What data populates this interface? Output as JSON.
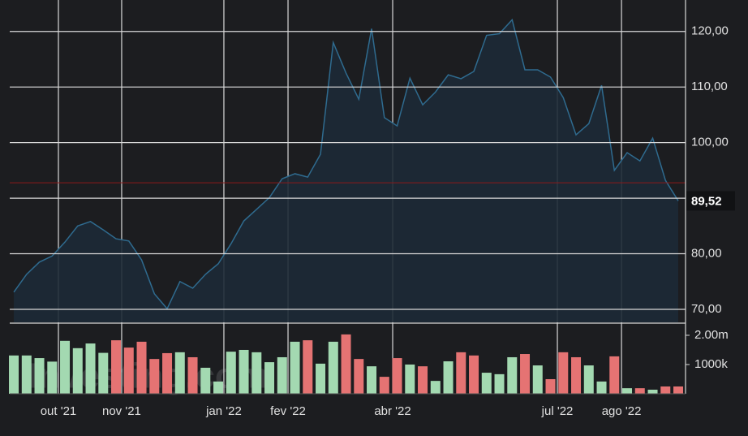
{
  "chart_data": [
    {
      "type": "line",
      "xlim": [
        -0.32,
        52.57
      ],
      "ylim": [
        67.66,
        124.2
      ],
      "yticks": [
        {
          "value": 70,
          "label": "70,00"
        },
        {
          "value": 80,
          "label": "80,00"
        },
        {
          "value": 90,
          "label": "90,00"
        },
        {
          "value": 100,
          "label": "100,00"
        },
        {
          "value": 110,
          "label": "110,00"
        },
        {
          "value": 120,
          "label": "120,00"
        }
      ],
      "grid": true,
      "reference_line": {
        "value": 92.77,
        "color": "#8b1a1a"
      },
      "last_value_label": "89,52",
      "series": [
        {
          "color": "#2f6b8f",
          "values": [
            73.1,
            76.3,
            78.5,
            79.6,
            82.1,
            85.0,
            85.8,
            84.3,
            82.7,
            82.3,
            78.9,
            72.8,
            70.1,
            75.0,
            73.8,
            76.3,
            78.2,
            81.8,
            85.9,
            88.0,
            90.1,
            93.5,
            94.4,
            93.8,
            97.9,
            118.0,
            112.5,
            107.8,
            120.5,
            104.5,
            103.0,
            111.6,
            106.8,
            109.1,
            112.2,
            111.5,
            112.8,
            119.3,
            119.6,
            122.1,
            113.1,
            113.1,
            111.8,
            108.1,
            101.4,
            103.4,
            110.3,
            95.0,
            98.2,
            96.7,
            100.8,
            93.2,
            89.52
          ]
        }
      ]
    },
    {
      "type": "bar",
      "watermark": "Investing.com",
      "xlim": [
        -0.32,
        52.57
      ],
      "ylim": [
        0,
        2360000
      ],
      "yticks": [
        {
          "value": 1000000,
          "label": "1000k"
        },
        {
          "value": 2000000,
          "label": "2.00m"
        }
      ],
      "xticks": [
        {
          "value": 3.49,
          "label": "out '21"
        },
        {
          "value": 8.44,
          "label": "nov '21"
        },
        {
          "value": 16.44,
          "label": "jan '22"
        },
        {
          "value": 21.46,
          "label": "fev '22"
        },
        {
          "value": 29.65,
          "label": "abr '22"
        },
        {
          "value": 42.54,
          "label": "jul '22"
        },
        {
          "value": 47.56,
          "label": "ago '22"
        }
      ],
      "series": [
        {
          "values": [
            1310000,
            1310000,
            1220000,
            1100000,
            1810000,
            1560000,
            1720000,
            1400000,
            1830000,
            1580000,
            1780000,
            1190000,
            1390000,
            1420000,
            1250000,
            890000,
            420000,
            1440000,
            1500000,
            1420000,
            1080000,
            1250000,
            1780000,
            1830000,
            1030000,
            1780000,
            2030000,
            1190000,
            940000,
            580000,
            1220000,
            1000000,
            940000,
            440000,
            1110000,
            1420000,
            1310000,
            720000,
            670000,
            1250000,
            1360000,
            970000,
            500000,
            1420000,
            1250000,
            970000,
            420000,
            1280000,
            190000,
            190000,
            140000,
            250000,
            250000
          ],
          "colors": [
            "#a3d9b1",
            "#a3d9b1",
            "#a3d9b1",
            "#a3d9b1",
            "#a3d9b1",
            "#a3d9b1",
            "#a3d9b1",
            "#a3d9b1",
            "#e57373",
            "#e57373",
            "#e57373",
            "#e57373",
            "#e57373",
            "#a3d9b1",
            "#e57373",
            "#a3d9b1",
            "#a3d9b1",
            "#a3d9b1",
            "#a3d9b1",
            "#a3d9b1",
            "#a3d9b1",
            "#a3d9b1",
            "#a3d9b1",
            "#e57373",
            "#a3d9b1",
            "#a3d9b1",
            "#e57373",
            "#e57373",
            "#a3d9b1",
            "#e57373",
            "#e57373",
            "#a3d9b1",
            "#e57373",
            "#a3d9b1",
            "#a3d9b1",
            "#e57373",
            "#e57373",
            "#a3d9b1",
            "#a3d9b1",
            "#a3d9b1",
            "#e57373",
            "#a3d9b1",
            "#e57373",
            "#e57373",
            "#e57373",
            "#a3d9b1",
            "#a3d9b1",
            "#e57373",
            "#a3d9b1",
            "#e57373",
            "#a3d9b1",
            "#e57373",
            "#e57373"
          ]
        }
      ]
    }
  ]
}
